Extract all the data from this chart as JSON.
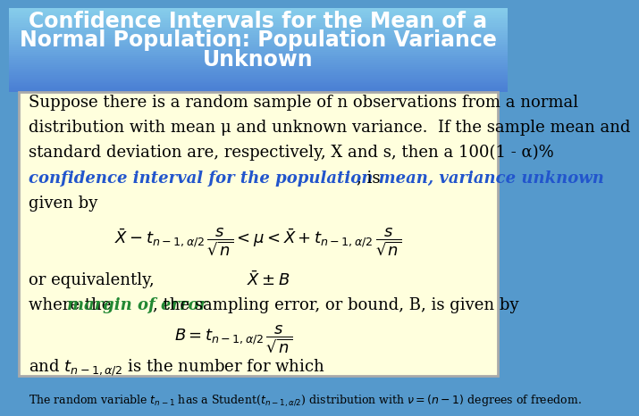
{
  "title_line1": "Confidence Intervals for the Mean of a",
  "title_line2": "Normal Population: Population Variance",
  "title_line3": "Unknown",
  "title_bg_color_top": "#4a7fd4",
  "title_bg_color_bottom": "#87ceeb",
  "title_text_color": "#ffffff",
  "body_bg_color": "#ffffdd",
  "body_border_color": "#aaaaaa",
  "body_text_color": "#000000",
  "highlight_color": "#2255cc",
  "margin_of_error_color": "#228833",
  "body_font_size": 13,
  "small_font_size": 9,
  "para1": "Suppose there is a random sample of n observations from a normal",
  "para2": "distribution with mean μ and unknown variance.  If the sample mean and",
  "para3": "standard deviation are, respectively, X and s, then a 100(1 - α)%",
  "para4_bold": "confidence interval for the population mean, variance unknown",
  "para4_end": ", is",
  "para5": "given by",
  "or_equiv": "or equivalently,",
  "where_pre": "where the ",
  "where_margin": "margin of error",
  "where_post": ", the sampling error, or bound, B, is given by",
  "and_line": "and ",
  "and_line_end": " is the number for which",
  "bottom_note": "The random variable $t_{n-1}$ has a Student($t_{n-1,\\alpha/2}$) distribution with $\\nu = (n-1)$ degrees of freedom."
}
